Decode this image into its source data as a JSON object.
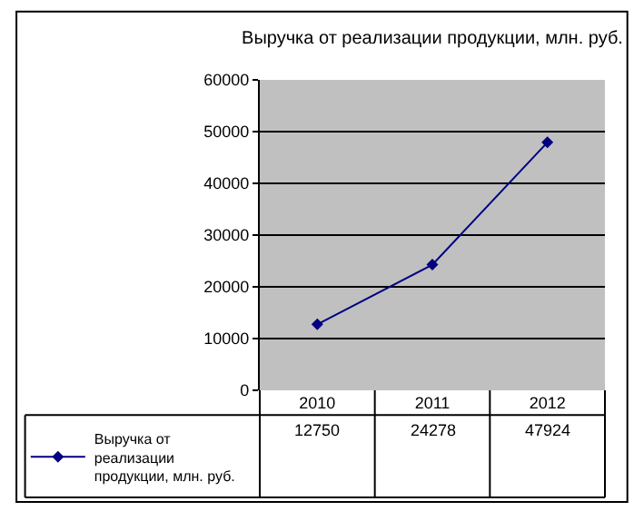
{
  "chart_data": {
    "type": "line",
    "title": "Выручка от реализации продукции, млн. руб.",
    "categories": [
      "2010",
      "2011",
      "2012"
    ],
    "series": [
      {
        "name": "Выручка от реализации продукции, млн. руб.",
        "color": "#000080",
        "values": [
          12750,
          24278,
          47924
        ]
      }
    ],
    "ylim": [
      0,
      60000
    ],
    "yticks": [
      0,
      10000,
      20000,
      30000,
      40000,
      50000,
      60000
    ],
    "grid": "y",
    "legend": "bottom left",
    "marker": "diamond",
    "line_style": "solid",
    "data_labels": true
  }
}
